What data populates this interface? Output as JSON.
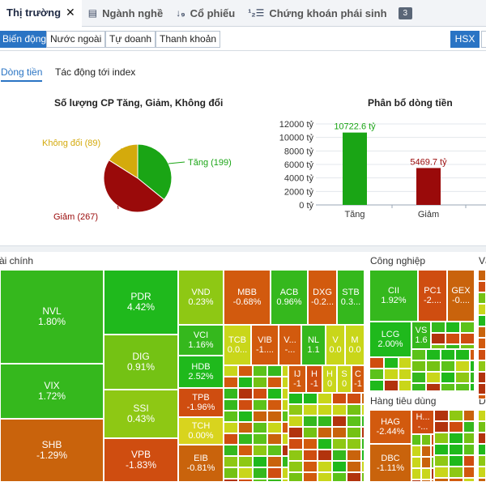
{
  "top_tabs": [
    {
      "label": "Thị trường",
      "icon": "home-icon"
    },
    {
      "label": "Ngành nghề",
      "icon": "list-icon"
    },
    {
      "label": "Cổ phiếu",
      "icon": "sort-icon"
    },
    {
      "label": "Chứng khoán phái sinh",
      "icon": "numbered-list-icon"
    },
    {
      "label": "3"
    }
  ],
  "sub_tabs": [
    "Biến động",
    "Nước ngoài",
    "Tự doanh",
    "Thanh khoản"
  ],
  "exchange": "HSX",
  "flow_tabs": [
    "Dòng tiền",
    "Tác động tới index"
  ],
  "chart_data": [
    {
      "type": "pie",
      "title": "Số lượng CP Tăng, Giảm, Không đổi",
      "categories": [
        "Tăng",
        "Giảm",
        "Không đổi"
      ],
      "values": [
        199,
        267,
        89
      ],
      "labels": [
        "Tăng (199)",
        "Giảm (267)",
        "Không đổi (89)"
      ],
      "colors": [
        "#1aa515",
        "#9a0a0a",
        "#d4aa0c"
      ]
    },
    {
      "type": "bar",
      "title": "Phân bổ dòng tiền",
      "categories": [
        "Tăng",
        "Giảm"
      ],
      "values": [
        10722.6,
        5469.7
      ],
      "value_labels": [
        "10722.6 tỷ",
        "5469.7 tỷ"
      ],
      "colors": [
        "#1aa515",
        "#9a0a0a"
      ],
      "ylim": [
        0,
        12000
      ],
      "yticks": [
        "0 tỷ",
        "2000 tỷ",
        "4000 tỷ",
        "6000 tỷ",
        "8000 tỷ",
        "10000 tỷ",
        "12000 tỷ"
      ]
    }
  ],
  "heatmap": {
    "groups": [
      "ài chính",
      "Công nghiệp",
      "Vậ",
      "Hàng tiêu dùng",
      "D"
    ],
    "tiles": {
      "NVL": {
        "name": "NVL",
        "pct": "1.80%"
      },
      "VIX": {
        "name": "VIX",
        "pct": "1.72%"
      },
      "SHB": {
        "name": "SHB",
        "pct": "-1.29%"
      },
      "PDR": {
        "name": "PDR",
        "pct": "4.42%"
      },
      "DIG": {
        "name": "DIG",
        "pct": "0.91%"
      },
      "SSI": {
        "name": "SSI",
        "pct": "0.43%"
      },
      "VPB": {
        "name": "VPB",
        "pct": "-1.83%"
      },
      "VND": {
        "name": "VND",
        "pct": "0.23%"
      },
      "VCI": {
        "name": "VCI",
        "pct": "1.16%"
      },
      "HDB": {
        "name": "HDB",
        "pct": "2.52%"
      },
      "TPB": {
        "name": "TPB",
        "pct": "-1.96%"
      },
      "TCH": {
        "name": "TCH",
        "pct": "0.00%"
      },
      "EIB": {
        "name": "EIB",
        "pct": "-0.81%"
      },
      "MBB": {
        "name": "MBB",
        "pct": "-0.68%"
      },
      "ACB": {
        "name": "ACB",
        "pct": "0.96%"
      },
      "DXG": {
        "name": "DXG",
        "pct": "-0.2..."
      },
      "STB": {
        "name": "STB",
        "pct": "0.3..."
      },
      "TCB": {
        "name": "TCB",
        "pct": "0.0..."
      },
      "VIB": {
        "name": "VIB",
        "pct": "-1...."
      },
      "V": {
        "name": "V...",
        "pct": "-..."
      },
      "NL": {
        "name": "NL",
        "pct": "1.1"
      },
      "V2": {
        "name": "V",
        "pct": "0.0"
      },
      "M": {
        "name": "M",
        "pct": "0.0"
      },
      "IJ": {
        "name": "IJ",
        "pct": "-1"
      },
      "H": {
        "name": "H",
        "pct": "-1"
      },
      "H2": {
        "name": "H",
        "pct": "0"
      },
      "S": {
        "name": "S",
        "pct": "0"
      },
      "C": {
        "name": "C",
        "pct": "-1"
      },
      "CII": {
        "name": "CII",
        "pct": "1.92%"
      },
      "PC1": {
        "name": "PC1",
        "pct": "-2...."
      },
      "GEX": {
        "name": "GEX",
        "pct": "-0...."
      },
      "LCG": {
        "name": "LCG",
        "pct": "2.00%"
      },
      "VS": {
        "name": "VS",
        "pct": "1.6"
      },
      "HAG": {
        "name": "HAG",
        "pct": "-2.44%"
      },
      "H3": {
        "name": "H...",
        "pct": "-..."
      },
      "DBC": {
        "name": "DBC",
        "pct": "-1.11%"
      }
    }
  }
}
